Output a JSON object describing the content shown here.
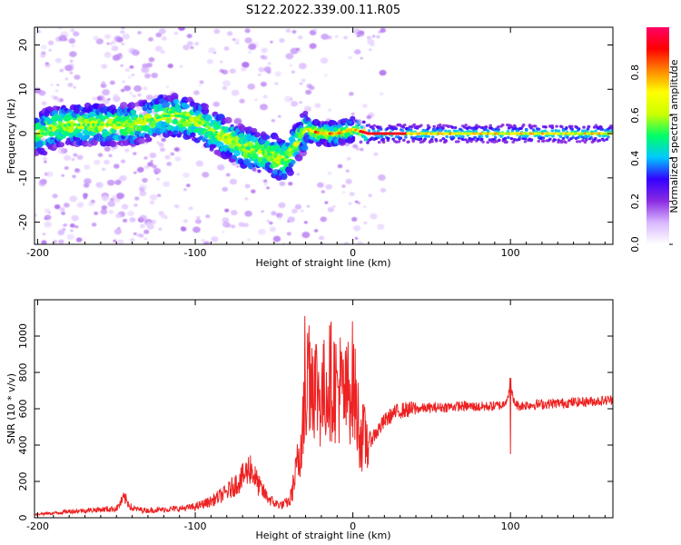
{
  "title": "S122.2022.339.00.11.R05",
  "chart_data": [
    {
      "type": "heatmap",
      "xlabel": "Height of straight line (km)",
      "ylabel": "Frequency (Hz)",
      "xlim": [
        -202,
        165
      ],
      "ylim": [
        -25,
        24
      ],
      "x_ticks": [
        -200,
        -100,
        0,
        100
      ],
      "y_ticks": [
        -20,
        -10,
        0,
        10,
        20
      ],
      "colorbar": {
        "label": "Normalized spectral amplitude",
        "range": [
          0,
          1
        ],
        "ticks": [
          "0.0",
          "0.2",
          "0.4",
          "0.6",
          "0.8"
        ],
        "colors": [
          "#ffffff",
          "#d9b8ff",
          "#8a2be2",
          "#3300ff",
          "#00c8ff",
          "#00ff66",
          "#ccff00",
          "#ffff00",
          "#ff8800",
          "#ff0000",
          "#ff0066"
        ]
      },
      "ridge": {
        "x": [
          -195,
          -180,
          -160,
          -140,
          -120,
          -110,
          -100,
          -90,
          -80,
          -70,
          -60,
          -50,
          -45,
          -40,
          -35,
          -30,
          -20,
          -10,
          0,
          10,
          50,
          100,
          165
        ],
        "frequency": [
          1,
          2,
          2,
          2,
          4,
          4,
          3,
          1,
          -1,
          -3,
          -4,
          -5,
          -6,
          -5,
          -2,
          1,
          0,
          0,
          1,
          0,
          0,
          0,
          0
        ]
      }
    },
    {
      "type": "line",
      "xlabel": "Height of straight line (km)",
      "ylabel": "SNR (10 * v/v)",
      "xlim": [
        -202,
        165
      ],
      "ylim": [
        0,
        1200
      ],
      "x_ticks": [
        -200,
        -100,
        0,
        100
      ],
      "y_ticks": [
        0,
        200,
        400,
        600,
        800,
        1000
      ],
      "color": "#ee2222",
      "series": {
        "x": [
          -202,
          -190,
          -180,
          -170,
          -160,
          -150,
          -145,
          -140,
          -130,
          -120,
          -110,
          -100,
          -90,
          -80,
          -70,
          -65,
          -60,
          -55,
          -50,
          -45,
          -40,
          -36,
          -33,
          -30,
          -28,
          -25,
          -22,
          -20,
          -17,
          -15,
          -12,
          -10,
          -8,
          -5,
          -2,
          0,
          3,
          5,
          8,
          10,
          15,
          20,
          25,
          30,
          40,
          50,
          60,
          70,
          80,
          90,
          95,
          98,
          100,
          102,
          105,
          110,
          120,
          130,
          140,
          150,
          160,
          165
        ],
        "values": [
          20,
          25,
          35,
          40,
          45,
          50,
          110,
          50,
          40,
          45,
          50,
          60,
          90,
          140,
          220,
          280,
          180,
          120,
          80,
          70,
          90,
          250,
          420,
          620,
          850,
          780,
          700,
          650,
          720,
          760,
          750,
          700,
          720,
          650,
          720,
          760,
          560,
          450,
          430,
          420,
          470,
          530,
          570,
          590,
          600,
          605,
          610,
          615,
          610,
          615,
          620,
          660,
          720,
          640,
          615,
          620,
          625,
          630,
          635,
          640,
          645,
          650
        ]
      }
    }
  ]
}
